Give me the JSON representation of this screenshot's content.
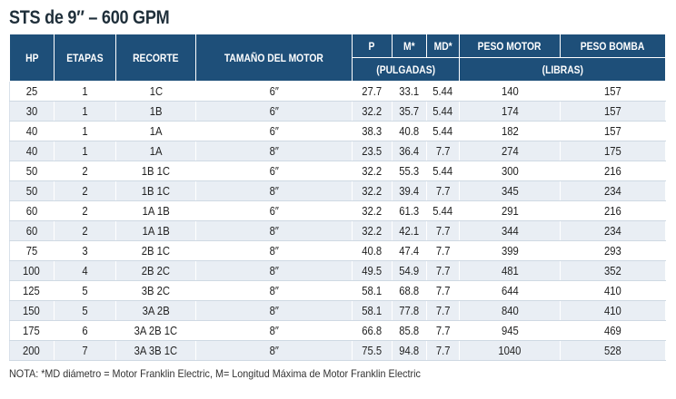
{
  "title": "STS de 9″ – 600 GPM",
  "headers": {
    "hp": "HP",
    "etapas": "ETAPAS",
    "recorte": "RECORTE",
    "tamano_motor": "TAMAÑO DEL MOTOR",
    "p": "P",
    "m": "M*",
    "md": "MD*",
    "peso_motor": "PESO MOTOR",
    "peso_bomba": "PESO BOMBA",
    "pulgadas": "(PULGADAS)",
    "libras": "(LIBRAS)"
  },
  "rows": [
    {
      "hp": "25",
      "etapas": "1",
      "recorte": "1C",
      "motor": "6″",
      "p": "27.7",
      "m": "33.1",
      "md": "5.44",
      "peso_motor": "140",
      "peso_bomba": "157"
    },
    {
      "hp": "30",
      "etapas": "1",
      "recorte": "1B",
      "motor": "6″",
      "p": "32.2",
      "m": "35.7",
      "md": "5.44",
      "peso_motor": "174",
      "peso_bomba": "157"
    },
    {
      "hp": "40",
      "etapas": "1",
      "recorte": "1A",
      "motor": "6″",
      "p": "38.3",
      "m": "40.8",
      "md": "5.44",
      "peso_motor": "182",
      "peso_bomba": "157"
    },
    {
      "hp": "40",
      "etapas": "1",
      "recorte": "1A",
      "motor": "8″",
      "p": "23.5",
      "m": "36.4",
      "md": "7.7",
      "peso_motor": "274",
      "peso_bomba": "175"
    },
    {
      "hp": "50",
      "etapas": "2",
      "recorte": "1B 1C",
      "motor": "6″",
      "p": "32.2",
      "m": "55.3",
      "md": "5.44",
      "peso_motor": "300",
      "peso_bomba": "216"
    },
    {
      "hp": "50",
      "etapas": "2",
      "recorte": "1B 1C",
      "motor": "8″",
      "p": "32.2",
      "m": "39.4",
      "md": "7.7",
      "peso_motor": "345",
      "peso_bomba": "234"
    },
    {
      "hp": "60",
      "etapas": "2",
      "recorte": "1A 1B",
      "motor": "6″",
      "p": "32.2",
      "m": "61.3",
      "md": "5.44",
      "peso_motor": "291",
      "peso_bomba": "216"
    },
    {
      "hp": "60",
      "etapas": "2",
      "recorte": "1A 1B",
      "motor": "8″",
      "p": "32.2",
      "m": "42.1",
      "md": "7.7",
      "peso_motor": "344",
      "peso_bomba": "234"
    },
    {
      "hp": "75",
      "etapas": "3",
      "recorte": "2B 1C",
      "motor": "8″",
      "p": "40.8",
      "m": "47.4",
      "md": "7.7",
      "peso_motor": "399",
      "peso_bomba": "293"
    },
    {
      "hp": "100",
      "etapas": "4",
      "recorte": "2B 2C",
      "motor": "8″",
      "p": "49.5",
      "m": "54.9",
      "md": "7.7",
      "peso_motor": "481",
      "peso_bomba": "352"
    },
    {
      "hp": "125",
      "etapas": "5",
      "recorte": "3B 2C",
      "motor": "8″",
      "p": "58.1",
      "m": "68.8",
      "md": "7.7",
      "peso_motor": "644",
      "peso_bomba": "410"
    },
    {
      "hp": "150",
      "etapas": "5",
      "recorte": "3A 2B",
      "motor": "8″",
      "p": "58.1",
      "m": "77.8",
      "md": "7.7",
      "peso_motor": "840",
      "peso_bomba": "410"
    },
    {
      "hp": "175",
      "etapas": "6",
      "recorte": "3A 2B 1C",
      "motor": "8″",
      "p": "66.8",
      "m": "85.8",
      "md": "7.7",
      "peso_motor": "945",
      "peso_bomba": "469"
    },
    {
      "hp": "200",
      "etapas": "7",
      "recorte": "3A 3B 1C",
      "motor": "8″",
      "p": "75.5",
      "m": "94.8",
      "md": "7.7",
      "peso_motor": "1040",
      "peso_bomba": "528"
    }
  ],
  "note": "NOTA: *MD diámetro = Motor Franklin Electric, M= Longitud Máxima de Motor Franklin Electric",
  "colors": {
    "header_bg": "#1e4f79",
    "header_text": "#ffffff",
    "row_alt": "#e9eef4",
    "title": "#1f2f3a"
  }
}
